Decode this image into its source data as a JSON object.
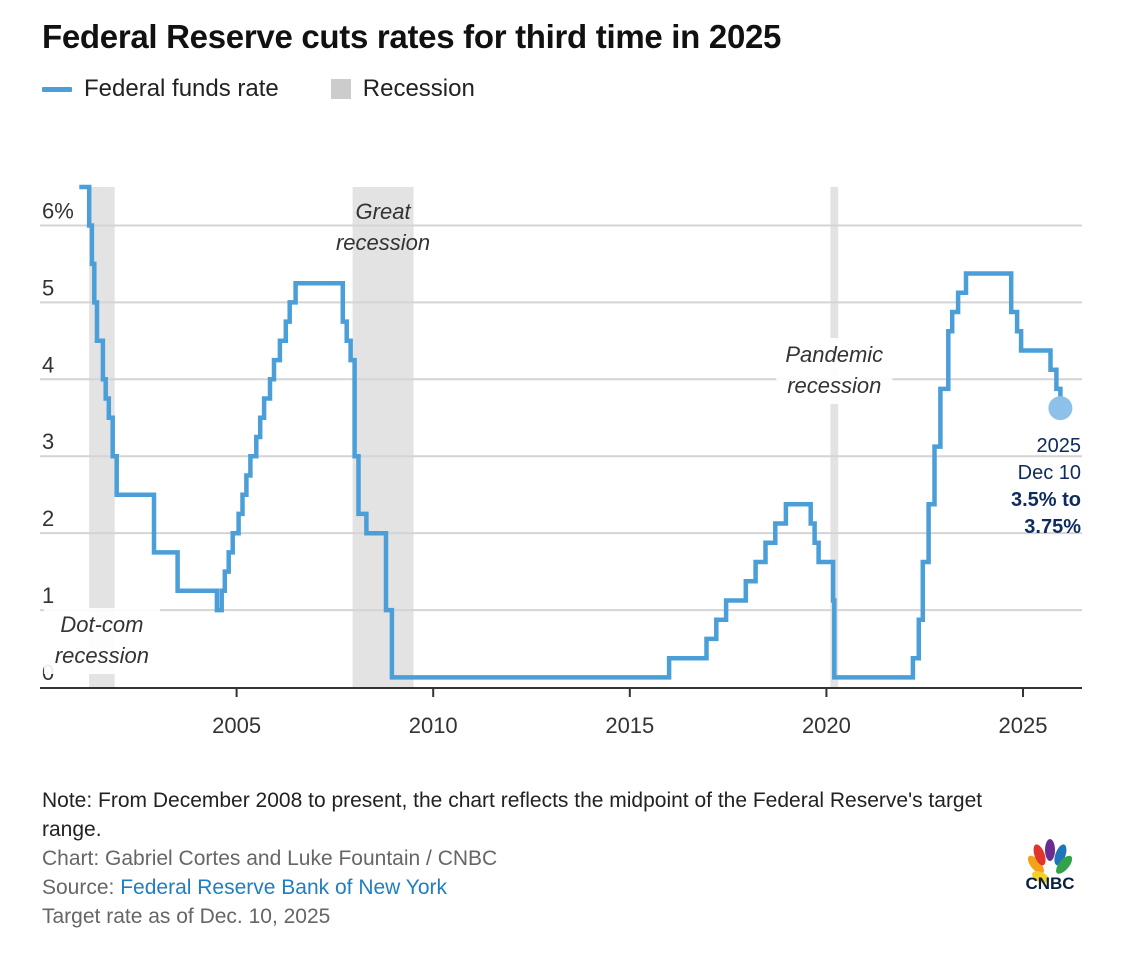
{
  "title": "Federal Reserve cuts rates for third time in 2025",
  "legend": {
    "line_label": "Federal funds rate",
    "box_label": "Recession"
  },
  "colors": {
    "line": "#4b9fd9",
    "recession": "#e3e3e3",
    "grid": "#d4d4d4",
    "axis": "#333333",
    "annotation_dark": "#0d2b5e",
    "endpoint": "#8dc1ea"
  },
  "chart_data": {
    "type": "line",
    "title": "Federal Reserve cuts rates for third time in 2025",
    "xlabel": "",
    "ylabel": "",
    "xlim": [
      2000.0,
      2026.5
    ],
    "ylim": [
      0,
      6.5
    ],
    "x_ticks": [
      2005,
      2010,
      2015,
      2020,
      2025
    ],
    "y_ticks": [
      0,
      1,
      2,
      3,
      4,
      5,
      6
    ],
    "y_tick_labels": [
      "0",
      "1",
      "2",
      "3",
      "4",
      "5",
      "6%"
    ],
    "grid": true,
    "series": [
      {
        "name": "Federal funds rate",
        "x": [
          2001.0,
          2001.05,
          2001.08,
          2001.25,
          2001.32,
          2001.38,
          2001.45,
          2001.6,
          2001.67,
          2001.75,
          2001.85,
          2001.95,
          2002.9,
          2003.5,
          2004.5,
          2004.62,
          2004.7,
          2004.8,
          2004.9,
          2005.05,
          2005.15,
          2005.25,
          2005.35,
          2005.5,
          2005.6,
          2005.7,
          2005.85,
          2005.95,
          2006.1,
          2006.25,
          2006.35,
          2006.5,
          2007.7,
          2007.8,
          2007.9,
          2008.0,
          2008.1,
          2008.3,
          2008.8,
          2008.95,
          2016.0,
          2016.95,
          2017.2,
          2017.45,
          2017.95,
          2018.2,
          2018.45,
          2018.7,
          2018.97,
          2019.6,
          2019.7,
          2019.8,
          2020.17,
          2020.2,
          2022.2,
          2022.35,
          2022.45,
          2022.6,
          2022.75,
          2022.9,
          2023.1,
          2023.2,
          2023.35,
          2023.55,
          2024.7,
          2024.85,
          2024.95,
          2025.7,
          2025.85,
          2025.95
        ],
        "y": [
          6.5,
          6.5,
          6.5,
          6.0,
          5.5,
          5.0,
          4.5,
          4.0,
          3.75,
          3.5,
          3.0,
          2.5,
          1.75,
          1.25,
          1.0,
          1.25,
          1.5,
          1.75,
          2.0,
          2.25,
          2.5,
          2.75,
          3.0,
          3.25,
          3.5,
          3.75,
          4.0,
          4.25,
          4.5,
          4.75,
          5.0,
          5.25,
          4.75,
          4.5,
          4.25,
          3.0,
          2.25,
          2.0,
          1.0,
          0.125,
          0.375,
          0.625,
          0.875,
          1.125,
          1.375,
          1.625,
          1.875,
          2.125,
          2.375,
          2.125,
          1.875,
          1.625,
          1.125,
          0.125,
          0.375,
          0.875,
          1.625,
          2.375,
          3.125,
          3.875,
          4.625,
          4.875,
          5.125,
          5.375,
          4.875,
          4.625,
          4.375,
          4.125,
          3.875,
          3.625
        ]
      }
    ],
    "recessions": [
      {
        "start": 2001.25,
        "end": 2001.9,
        "label_lines": [
          "Dot-com",
          "recession"
        ]
      },
      {
        "start": 2007.95,
        "end": 2009.5,
        "label_lines": [
          "Great",
          "recession"
        ]
      },
      {
        "start": 2020.1,
        "end": 2020.3,
        "label_lines": [
          "Pandemic",
          "recession"
        ]
      }
    ],
    "end_annotation": {
      "x": 2025.95,
      "y": 3.625,
      "lines": [
        "2025",
        "Dec 10",
        "3.5% to",
        "3.75%"
      ]
    }
  },
  "notes": {
    "note": "Note: From December 2008 to present, the chart reflects the midpoint of the Federal Reserve's target range.",
    "credit": "Chart: Gabriel Cortes and Luke Fountain / CNBC",
    "source_label": "Source: ",
    "source_link": "Federal Reserve Bank of New York",
    "asof": "Target rate as of Dec. 10, 2025"
  },
  "logo": {
    "text": "CNBC",
    "icon": "cnbc-peacock-logo"
  }
}
